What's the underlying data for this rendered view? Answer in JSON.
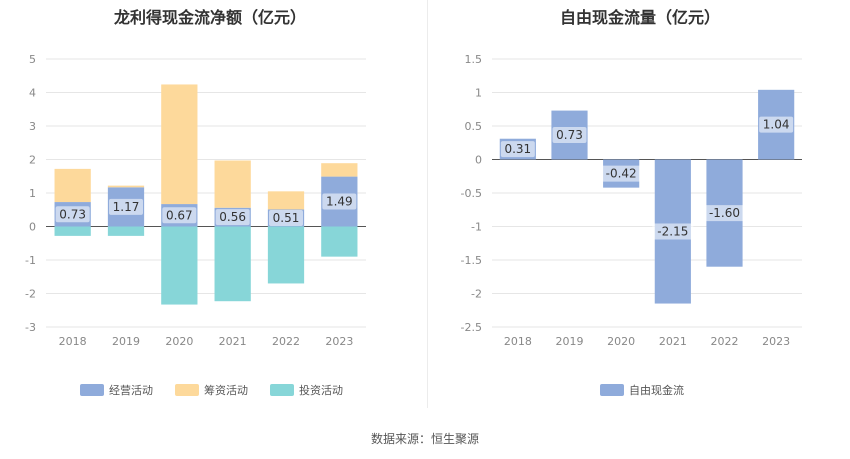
{
  "source_label": "数据来源：恒生聚源",
  "chart_data": [
    {
      "type": "bar",
      "title": "龙利得现金流净额（亿元）",
      "categories": [
        "2018",
        "2019",
        "2020",
        "2021",
        "2022",
        "2023"
      ],
      "series": [
        {
          "name": "经营活动",
          "color": "#8fabdb",
          "values": [
            0.73,
            1.17,
            0.67,
            0.56,
            0.51,
            1.49
          ]
        },
        {
          "name": "筹资活动",
          "color": "#fdd99b",
          "values": [
            0.99,
            0.05,
            3.57,
            1.41,
            0.54,
            0.4
          ]
        },
        {
          "name": "投资活动",
          "color": "#87d6d8",
          "values": [
            -0.28,
            -0.28,
            -2.33,
            -2.23,
            -1.7,
            -0.9
          ]
        }
      ],
      "ylim": [
        -3,
        5
      ],
      "yticks": [
        "5",
        "4",
        "3",
        "2",
        "1",
        "0",
        "-1",
        "-2",
        "-3"
      ],
      "data_labels": [
        "0.73",
        "1.17",
        "0.67",
        "0.56",
        "0.51",
        "1.49"
      ],
      "xlabel": "",
      "ylabel": "",
      "grid": true,
      "legend": "bottom"
    },
    {
      "type": "bar",
      "title": "自由现金流量（亿元）",
      "categories": [
        "2018",
        "2019",
        "2020",
        "2021",
        "2022",
        "2023"
      ],
      "series": [
        {
          "name": "自由现金流",
          "color": "#8fabdb",
          "values": [
            0.31,
            0.73,
            -0.42,
            -2.15,
            -1.6,
            1.04
          ]
        }
      ],
      "ylim": [
        -2.5,
        1.5
      ],
      "yticks": [
        "1.5",
        "1",
        "0.5",
        "0",
        "-0.5",
        "-1",
        "-1.5",
        "-2",
        "-2.5"
      ],
      "data_labels": [
        "0.31",
        "0.73",
        "-0.42",
        "-2.15",
        "-1.60",
        "1.04"
      ],
      "xlabel": "",
      "ylabel": "",
      "grid": true,
      "legend": "bottom"
    }
  ]
}
